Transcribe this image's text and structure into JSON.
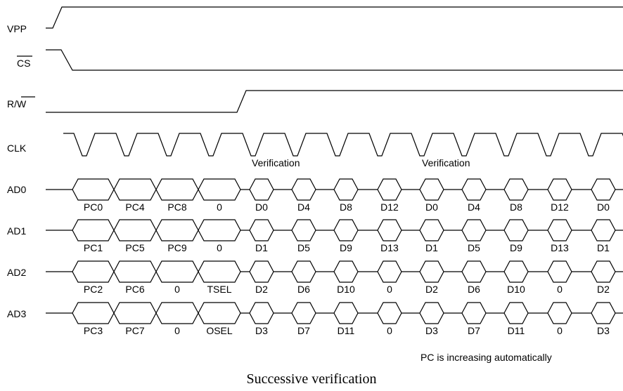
{
  "signals": {
    "vpp": "VPP",
    "cs": "CS",
    "rw_r": "R/",
    "rw_w": "W",
    "clk": "CLK",
    "ad0": "AD0",
    "ad1": "AD1",
    "ad2": "AD2",
    "ad3": "AD3"
  },
  "annotations": {
    "verification_1": "Verification",
    "verification_2": "Verification",
    "pc_note": "PC is increasing automatically"
  },
  "caption": "Successive verification",
  "buses": [
    {
      "name": "AD0",
      "labels": [
        "PC0",
        "PC4",
        "PC8",
        "0",
        "D0",
        "D4",
        "D8",
        "D12",
        "D0",
        "D4",
        "D8",
        "D12",
        "D0"
      ]
    },
    {
      "name": "AD1",
      "labels": [
        "PC1",
        "PC5",
        "PC9",
        "0",
        "D1",
        "D5",
        "D9",
        "D13",
        "D1",
        "D5",
        "D9",
        "D13",
        "D1"
      ]
    },
    {
      "name": "AD2",
      "labels": [
        "PC2",
        "PC6",
        "0",
        "TSEL",
        "D2",
        "D6",
        "D10",
        "0",
        "D2",
        "D6",
        "D10",
        "0",
        "D2"
      ]
    },
    {
      "name": "AD3",
      "labels": [
        "PC3",
        "PC7",
        "0",
        "OSEL",
        "D3",
        "D7",
        "D11",
        "0",
        "D3",
        "D7",
        "D11",
        "0",
        "D3"
      ]
    }
  ]
}
